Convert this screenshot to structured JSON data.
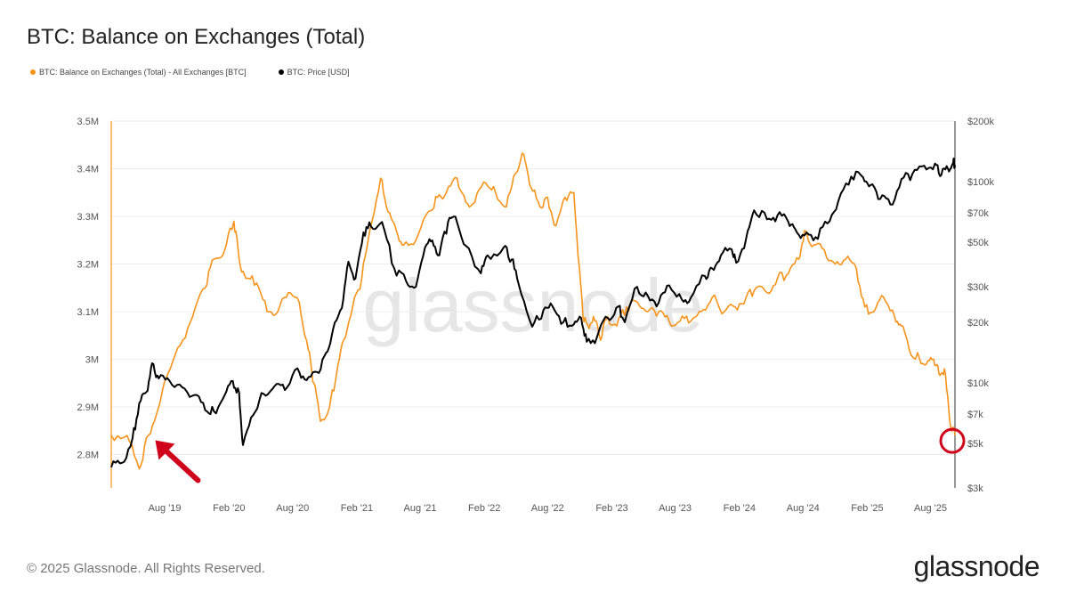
{
  "chart_data": {
    "type": "line",
    "title": "BTC: Balance on Exchanges (Total)",
    "legend_position": "top-left",
    "grid": "horizontal",
    "watermark": "glassnode",
    "x_ticks": [
      "Aug '19",
      "Feb '20",
      "Aug '20",
      "Feb '21",
      "Aug '21",
      "Feb '22",
      "Aug '22",
      "Feb '23",
      "Aug '23",
      "Feb '24",
      "Aug '24",
      "Feb '25",
      "Aug '25"
    ],
    "x_range": [
      "2019-03-01",
      "2025-10-10"
    ],
    "left_axis": {
      "ticks": [
        "2.8M",
        "2.9M",
        "3M",
        "3.1M",
        "3.2M",
        "3.3M",
        "3.4M",
        "3.5M"
      ],
      "ylim": [
        2.73,
        3.5
      ],
      "unit": "M BTC"
    },
    "right_axis": {
      "ticks": [
        "$3k",
        "$5k",
        "$7k",
        "$10k",
        "$20k",
        "$30k",
        "$50k",
        "$70k",
        "$100k",
        "$200k"
      ],
      "ylim": [
        3000,
        200000
      ],
      "scale": "log"
    },
    "series": [
      {
        "name": "BTC: Balance on Exchanges (Total) - All Exchanges [BTC]",
        "color": "#f7931a",
        "axis": "left",
        "x": [
          "2019-03-01",
          "2019-04-15",
          "2019-05-20",
          "2019-06-15",
          "2019-07-15",
          "2019-08-10",
          "2019-09-15",
          "2019-10-20",
          "2019-11-25",
          "2019-12-20",
          "2020-01-20",
          "2020-02-15",
          "2020-03-01",
          "2020-03-20",
          "2020-04-20",
          "2020-05-20",
          "2020-06-20",
          "2020-07-20",
          "2020-08-20",
          "2020-09-15",
          "2020-10-01",
          "2020-10-20",
          "2020-11-15",
          "2020-12-05",
          "2020-12-25",
          "2021-01-20",
          "2021-02-15",
          "2021-03-10",
          "2021-04-10",
          "2021-05-01",
          "2021-05-25",
          "2021-06-15",
          "2021-07-20",
          "2021-08-25",
          "2021-09-20",
          "2021-10-15",
          "2021-11-15",
          "2021-12-10",
          "2022-01-05",
          "2022-02-05",
          "2022-03-05",
          "2022-04-05",
          "2022-05-01",
          "2022-05-25",
          "2022-06-15",
          "2022-07-10",
          "2022-08-01",
          "2022-08-25",
          "2022-09-20",
          "2022-10-15",
          "2022-10-30",
          "2022-11-10",
          "2022-11-25",
          "2022-12-10",
          "2022-12-30",
          "2023-01-20",
          "2023-02-15",
          "2023-03-15",
          "2023-04-15",
          "2023-05-15",
          "2023-06-15",
          "2023-07-15",
          "2023-08-15",
          "2023-09-15",
          "2023-10-15",
          "2023-11-15",
          "2023-12-20",
          "2024-01-20",
          "2024-02-20",
          "2024-03-20",
          "2024-04-20",
          "2024-05-20",
          "2024-06-20",
          "2024-07-20",
          "2024-08-05",
          "2024-09-01",
          "2024-10-01",
          "2024-11-01",
          "2024-12-01",
          "2025-01-01",
          "2025-01-25",
          "2025-02-20",
          "2025-03-20",
          "2025-04-20",
          "2025-05-10",
          "2025-06-01",
          "2025-07-01",
          "2025-07-20",
          "2025-08-10",
          "2025-08-25",
          "2025-09-10",
          "2025-09-25",
          "2025-10-10"
        ],
        "values": [
          2.84,
          2.84,
          2.77,
          2.84,
          2.9,
          2.97,
          3.03,
          3.09,
          3.15,
          3.21,
          3.23,
          3.29,
          3.21,
          3.17,
          3.16,
          3.1,
          3.1,
          3.14,
          3.12,
          3.02,
          2.95,
          2.87,
          2.9,
          2.97,
          3.04,
          3.11,
          3.17,
          3.27,
          3.38,
          3.31,
          3.27,
          3.24,
          3.25,
          3.31,
          3.34,
          3.35,
          3.38,
          3.33,
          3.33,
          3.37,
          3.35,
          3.32,
          3.39,
          3.43,
          3.36,
          3.32,
          3.34,
          3.28,
          3.34,
          3.35,
          3.2,
          3.09,
          3.07,
          3.09,
          3.04,
          3.09,
          3.07,
          3.11,
          3.12,
          3.1,
          3.1,
          3.08,
          3.08,
          3.08,
          3.1,
          3.13,
          3.1,
          3.11,
          3.13,
          3.15,
          3.14,
          3.17,
          3.18,
          3.21,
          3.27,
          3.24,
          3.23,
          3.2,
          3.21,
          3.19,
          3.11,
          3.1,
          3.13,
          3.09,
          3.07,
          3.02,
          3.0,
          2.99,
          3.0,
          2.97,
          2.98,
          2.87,
          2.84
        ]
      },
      {
        "name": "BTC: Price [USD]",
        "color": "#000000",
        "axis": "right",
        "x": [
          "2019-03-01",
          "2019-04-01",
          "2019-05-01",
          "2019-05-20",
          "2019-06-10",
          "2019-06-26",
          "2019-07-15",
          "2019-08-15",
          "2019-09-20",
          "2019-10-26",
          "2019-11-25",
          "2019-12-20",
          "2020-01-20",
          "2020-02-12",
          "2020-03-01",
          "2020-03-12",
          "2020-04-10",
          "2020-05-10",
          "2020-06-10",
          "2020-07-10",
          "2020-08-15",
          "2020-09-10",
          "2020-10-10",
          "2020-11-05",
          "2020-11-25",
          "2020-12-20",
          "2021-01-08",
          "2021-01-28",
          "2021-02-20",
          "2021-03-13",
          "2021-04-14",
          "2021-05-19",
          "2021-06-22",
          "2021-07-20",
          "2021-08-15",
          "2021-09-05",
          "2021-09-25",
          "2021-10-20",
          "2021-11-10",
          "2021-12-10",
          "2022-01-22",
          "2022-02-10",
          "2022-03-28",
          "2022-04-20",
          "2022-05-10",
          "2022-06-18",
          "2022-07-20",
          "2022-08-15",
          "2022-09-15",
          "2022-10-15",
          "2022-11-05",
          "2022-11-21",
          "2022-12-20",
          "2023-01-20",
          "2023-02-20",
          "2023-03-10",
          "2023-04-14",
          "2023-05-15",
          "2023-06-15",
          "2023-07-15",
          "2023-08-20",
          "2023-09-15",
          "2023-10-25",
          "2023-11-15",
          "2023-12-10",
          "2024-01-10",
          "2024-01-23",
          "2024-02-20",
          "2024-03-14",
          "2024-04-20",
          "2024-05-20",
          "2024-06-20",
          "2024-07-10",
          "2024-08-05",
          "2024-09-06",
          "2024-10-10",
          "2024-11-10",
          "2024-12-17",
          "2025-01-20",
          "2025-02-10",
          "2025-03-10",
          "2025-04-08",
          "2025-05-10",
          "2025-06-10",
          "2025-07-14",
          "2025-08-14",
          "2025-09-01",
          "2025-09-20",
          "2025-10-05",
          "2025-10-10"
        ],
        "values": [
          3800,
          4000,
          5300,
          7900,
          9000,
          12500,
          10500,
          10200,
          9500,
          8700,
          7300,
          7200,
          8700,
          10200,
          8900,
          4900,
          6900,
          8800,
          9600,
          9200,
          11800,
          10300,
          11300,
          14100,
          18500,
          23500,
          40000,
          33000,
          56000,
          60000,
          63000,
          37000,
          32000,
          30000,
          47000,
          51000,
          43000,
          63000,
          67000,
          48000,
          35000,
          43000,
          47000,
          41000,
          31000,
          19000,
          23000,
          24000,
          20000,
          19500,
          21000,
          16000,
          16800,
          21000,
          24000,
          20000,
          30000,
          27000,
          25000,
          30500,
          26000,
          26500,
          34000,
          37000,
          43000,
          46000,
          39500,
          52000,
          72000,
          65000,
          68000,
          63000,
          58000,
          54000,
          53000,
          62000,
          80000,
          106000,
          105000,
          96000,
          82000,
          77000,
          103000,
          109000,
          120000,
          123000,
          108000,
          116000,
          124000,
          121000
        ]
      }
    ]
  },
  "footer": {
    "copyright": "© 2025 Glassnode. All Rights Reserved.",
    "brand": "glassnode"
  }
}
